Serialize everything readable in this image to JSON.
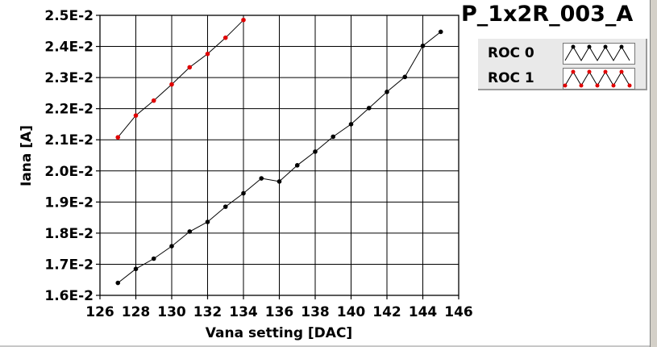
{
  "title": "P_1x2R_003_A",
  "chart_data": {
    "type": "line",
    "xlabel": "Vana setting [DAC]",
    "ylabel": "Iana [A]",
    "xlim": [
      126,
      146
    ],
    "ylim": [
      0.016,
      0.025
    ],
    "x_ticks": [
      "126",
      "128",
      "130",
      "132",
      "134",
      "136",
      "138",
      "140",
      "142",
      "144",
      "146"
    ],
    "y_ticks": [
      "1.6E-2",
      "1.7E-2",
      "1.8E-2",
      "1.9E-2",
      "2.0E-2",
      "2.1E-2",
      "2.2E-2",
      "2.3E-2",
      "2.4E-2",
      "2.5E-2"
    ],
    "grid": true,
    "legend_position": "top-right",
    "series": [
      {
        "name": "ROC 0",
        "color": "#000000",
        "x": [
          127,
          128,
          129,
          130,
          131,
          132,
          133,
          134,
          135,
          136,
          137,
          138,
          139,
          140,
          141,
          142,
          143,
          144,
          145
        ],
        "y": [
          0.0164,
          0.01685,
          0.01718,
          0.01758,
          0.01805,
          0.01836,
          0.01885,
          0.01928,
          0.01976,
          0.01966,
          0.02018,
          0.02062,
          0.0211,
          0.0215,
          0.02202,
          0.02254,
          0.02302,
          0.02402,
          0.02447
        ]
      },
      {
        "name": "ROC 1",
        "color": "#e00000",
        "x": [
          127,
          128,
          129,
          130,
          131,
          132,
          133,
          134
        ],
        "y": [
          0.02108,
          0.02178,
          0.02226,
          0.02278,
          0.02333,
          0.02376,
          0.02428,
          0.02485
        ]
      }
    ]
  }
}
